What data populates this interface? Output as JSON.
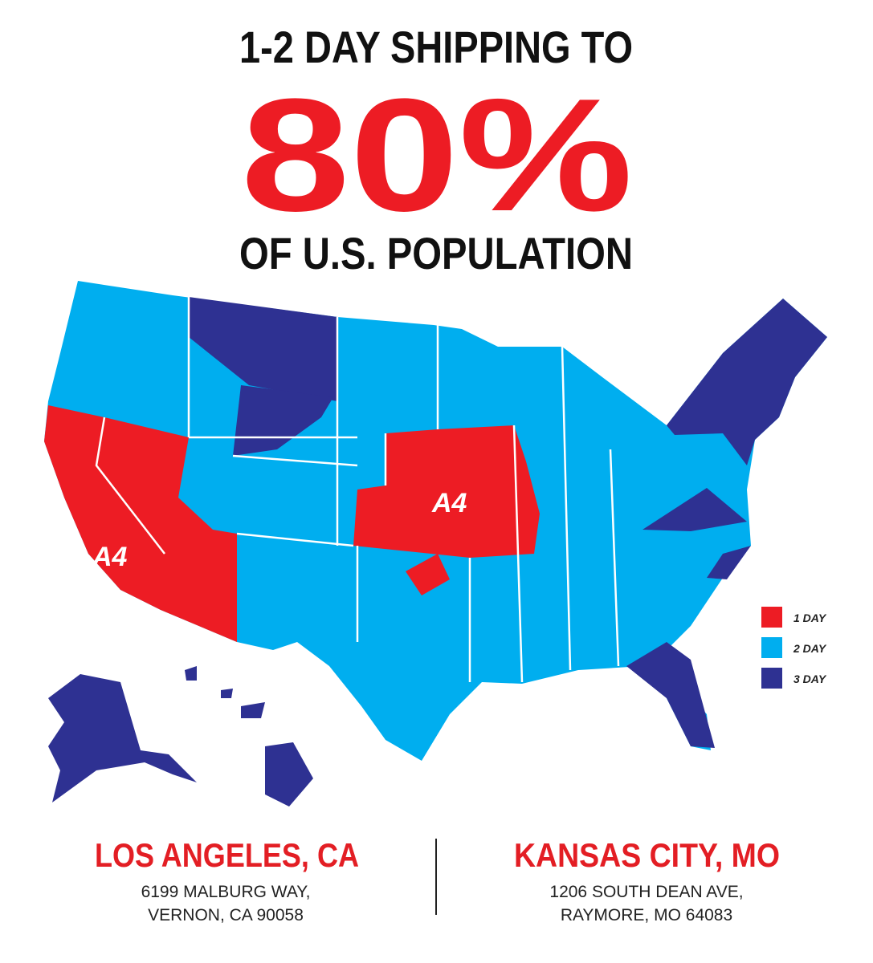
{
  "header": {
    "line1": "1-2 DAY SHIPPING TO",
    "highlight": "80%",
    "line2": "OF U.S. POPULATION"
  },
  "map": {
    "markers": [
      "A4",
      "A4"
    ]
  },
  "legend": [
    {
      "label": "1 DAY",
      "color": "#ed1c24"
    },
    {
      "label": "2 DAY",
      "color": "#00aeef"
    },
    {
      "label": "3 DAY",
      "color": "#2e3192"
    }
  ],
  "locations": [
    {
      "city": "LOS ANGELES, CA",
      "address": [
        "6199 MALBURG WAY,",
        "VERNON, CA 90058"
      ]
    },
    {
      "city": "KANSAS CITY, MO",
      "address": [
        "1206 SOUTH DEAN AVE,",
        "RAYMORE, MO 64083"
      ]
    }
  ]
}
